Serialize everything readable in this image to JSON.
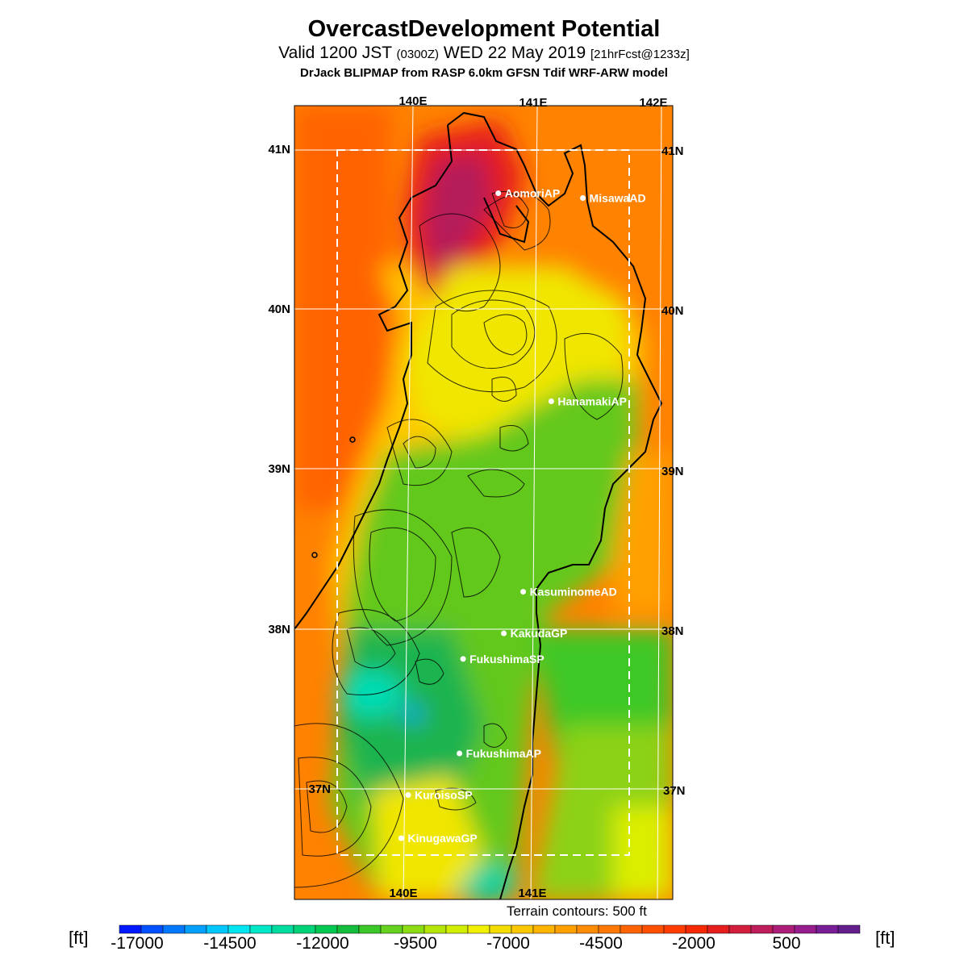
{
  "header": {
    "title": "OvercastDevelopment Potential",
    "valid_main": "Valid 1200 JST",
    "valid_z": "(0300Z)",
    "valid_date": "WED 22 May 2019",
    "forecast": "[21hrFcst@1233z]",
    "model": "DrJack BLIPMAP from RASP 6.0km GFSN Tdif WRF-ARW model"
  },
  "map": {
    "lon_labels_top": [
      "140E",
      "141E",
      "142E"
    ],
    "lon_labels_bottom": [
      "140E",
      "141E"
    ],
    "lat_labels_left": [
      "41N",
      "40N",
      "39N",
      "38N",
      "37N"
    ],
    "lat_labels_right": [
      "41N",
      "40N",
      "39N",
      "38N",
      "37N"
    ],
    "stations": [
      {
        "name": "AomoriAP",
        "lat": 40.73,
        "lon": 140.69
      },
      {
        "name": "MisawaAD",
        "lat": 40.7,
        "lon": 141.37
      },
      {
        "name": "HanamakiAP",
        "lat": 39.43,
        "lon": 141.13
      },
      {
        "name": "KasuminomeAD",
        "lat": 38.24,
        "lon": 140.92
      },
      {
        "name": "KakudaGP",
        "lat": 37.98,
        "lon": 140.77
      },
      {
        "name": "FukushimaSP",
        "lat": 37.82,
        "lon": 140.45
      },
      {
        "name": "FukushimaAP",
        "lat": 37.23,
        "lon": 140.43
      },
      {
        "name": "KuroisoSP",
        "lat": 36.97,
        "lon": 140.03
      },
      {
        "name": "KinugawaGP",
        "lat": 36.7,
        "lon": 139.98
      }
    ],
    "terrain_note": "Terrain contours: 500 ft"
  },
  "legend": {
    "unit": "[ft]",
    "labels": [
      "-17000",
      "-14500",
      "-12000",
      "-9500",
      "-7000",
      "-4500",
      "-2000",
      "500"
    ],
    "colors": [
      "#0018ff",
      "#0050ff",
      "#0078ff",
      "#00a0ff",
      "#00c8ff",
      "#00e6f0",
      "#00e6c8",
      "#00dca0",
      "#00d278",
      "#00c850",
      "#14be3c",
      "#3cc828",
      "#64d21e",
      "#8cdc14",
      "#b4e60a",
      "#d2ee00",
      "#f0f000",
      "#f5dc00",
      "#fac800",
      "#ffb400",
      "#ffa000",
      "#ff8c00",
      "#ff7800",
      "#ff6400",
      "#ff5000",
      "#ff3c00",
      "#f52800",
      "#e61e1e",
      "#d21e3c",
      "#be1e5a",
      "#aa1e78",
      "#961e8c",
      "#781e96",
      "#641e8c"
    ]
  }
}
